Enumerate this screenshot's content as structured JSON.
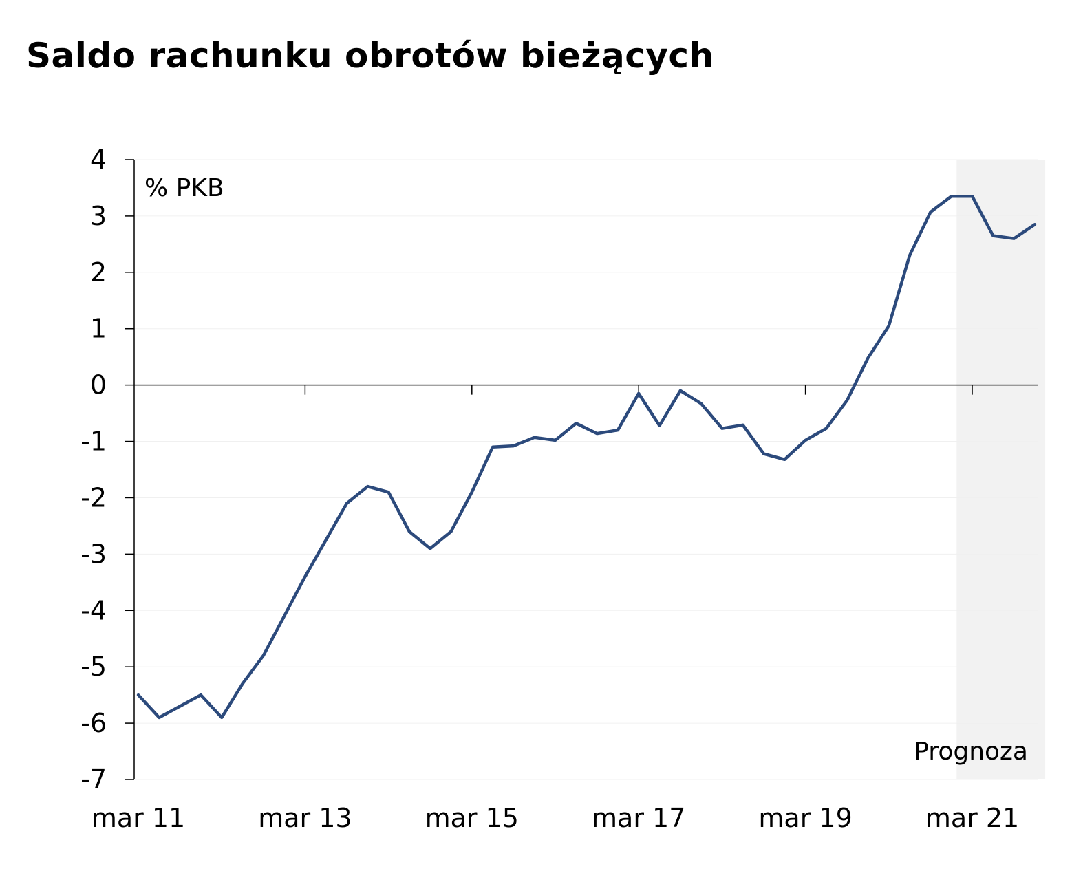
{
  "chart_data": {
    "type": "line",
    "title": "Saldo rachunku obrotów bieżących",
    "unit_label": "% PKB",
    "forecast_label": "Prognoza",
    "xlabel": "",
    "ylabel": "",
    "ylim": [
      -7,
      4
    ],
    "yticks": [
      "4",
      "3",
      "2",
      "1",
      "0",
      "-1",
      "-2",
      "-3",
      "-4",
      "-5",
      "-6",
      "-7"
    ],
    "ytick_values": [
      4,
      3,
      2,
      1,
      0,
      -1,
      -2,
      -3,
      -4,
      -5,
      -6,
      -7
    ],
    "xtick_labels": [
      "mar 11",
      "mar 13",
      "mar 15",
      "mar 17",
      "mar 19",
      "mar 21"
    ],
    "xtick_quarters": [
      0,
      8,
      16,
      24,
      32,
      40
    ],
    "x_quarters_total": 43.5,
    "forecast_start_quarter": 39.25,
    "grid": "horizontal, light",
    "legend": "none",
    "series": [
      {
        "color": "#2c4a7c",
        "values": [
          -5.5,
          -5.9,
          -5.7,
          -5.5,
          -5.9,
          -5.3,
          -4.8,
          -4.1,
          -3.4,
          -2.75,
          -2.1,
          -1.8,
          -1.9,
          -2.6,
          -2.9,
          -2.6,
          -1.9,
          -1.1,
          -1.08,
          -0.93,
          -0.98,
          -0.68,
          -0.86,
          -0.8,
          -0.15,
          -0.72,
          -0.1,
          -0.33,
          -0.77,
          -0.71,
          -1.22,
          -1.32,
          -0.98,
          -0.77,
          -0.27,
          0.48,
          1.05,
          2.3,
          3.07,
          3.35,
          3.35,
          2.65,
          2.6,
          2.85
        ]
      }
    ]
  }
}
